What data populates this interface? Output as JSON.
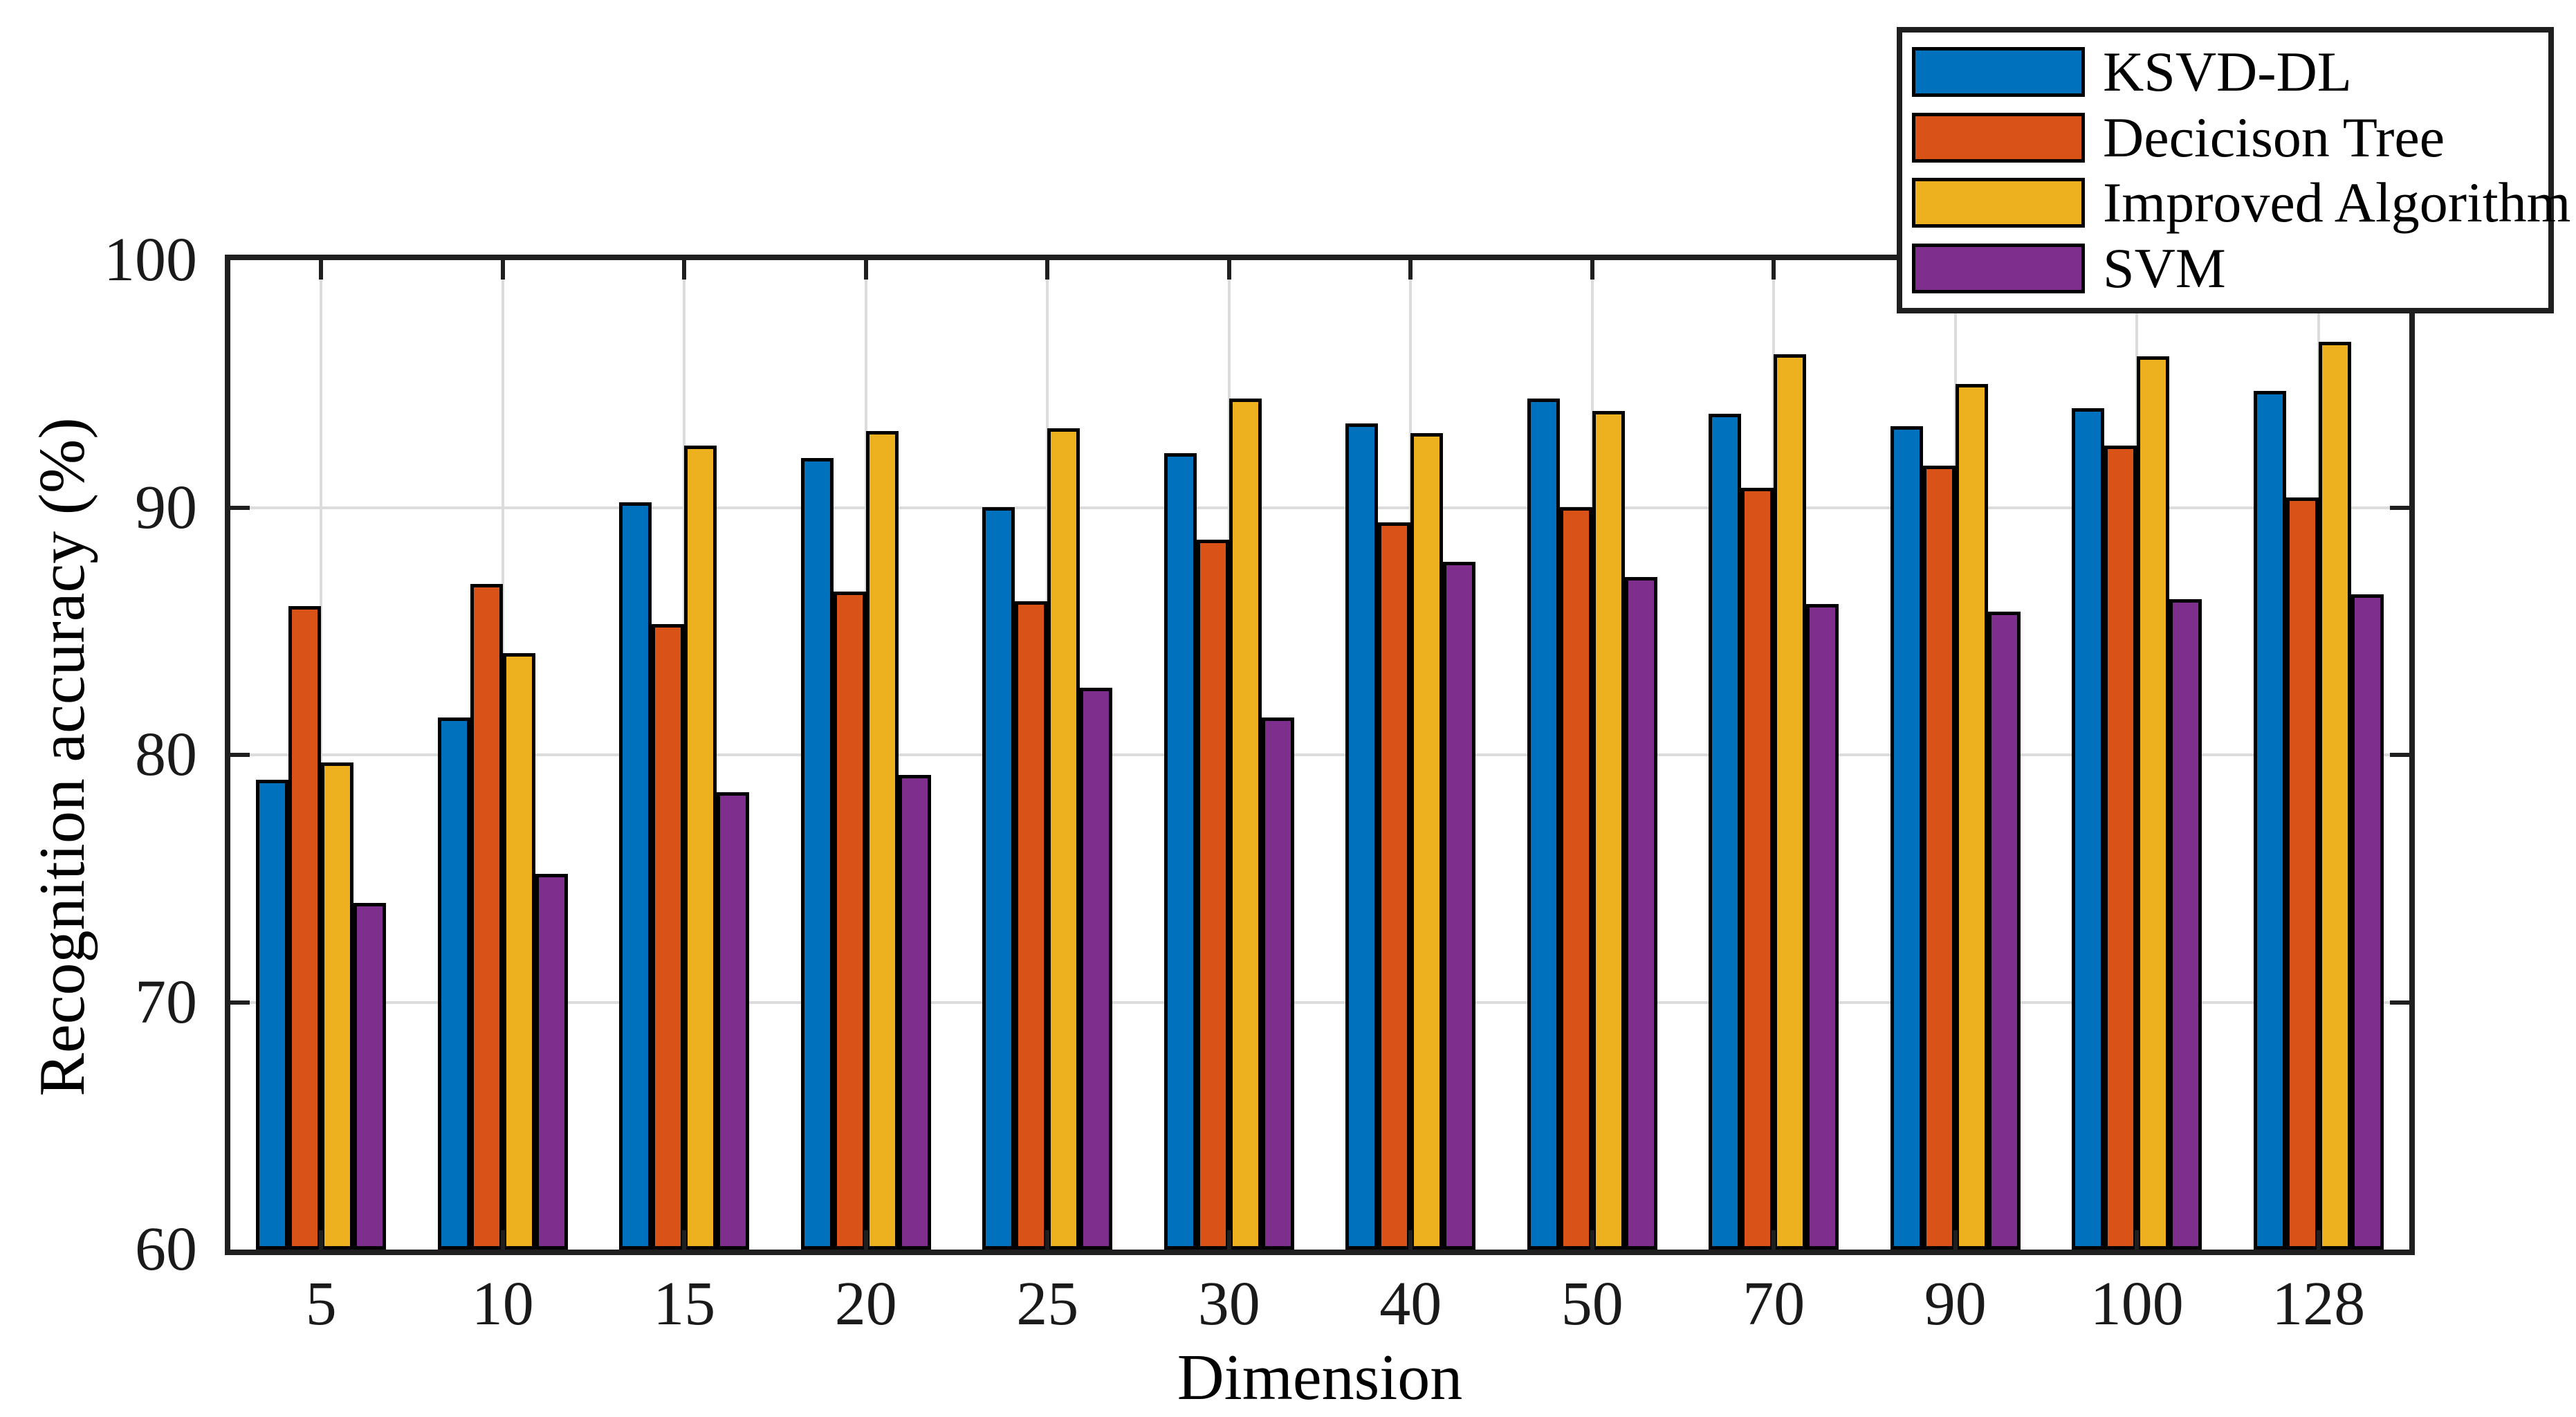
{
  "chart_data": {
    "type": "bar",
    "title": "",
    "xlabel": "Dimension",
    "ylabel": "Recognition accuracy (%)",
    "ylim": [
      60,
      100
    ],
    "yticks": [
      60,
      70,
      80,
      90,
      100
    ],
    "grid": true,
    "legend_position": "top-right",
    "categories": [
      "5",
      "10",
      "15",
      "20",
      "25",
      "30",
      "40",
      "50",
      "70",
      "90",
      "100",
      "128"
    ],
    "series": [
      {
        "name": "KSVD-DL",
        "color": "#0072BD",
        "values": [
          79.0,
          81.5,
          90.2,
          92.0,
          90.0,
          92.2,
          93.4,
          94.4,
          93.8,
          93.3,
          94.0,
          94.7
        ]
      },
      {
        "name": "Decicison Tree",
        "color": "#D95319",
        "values": [
          86.0,
          86.9,
          85.3,
          86.6,
          86.2,
          88.7,
          89.4,
          90.0,
          90.8,
          91.7,
          92.5,
          90.4
        ]
      },
      {
        "name": "Improved Algorithm",
        "color": "#EDB120",
        "values": [
          79.7,
          84.1,
          92.5,
          93.1,
          93.2,
          94.4,
          93.0,
          93.9,
          96.2,
          95.0,
          96.1,
          96.7
        ]
      },
      {
        "name": "SVM",
        "color": "#7E2F8E",
        "values": [
          74.0,
          75.2,
          78.5,
          79.2,
          82.7,
          81.5,
          87.8,
          87.2,
          86.1,
          85.8,
          86.3,
          86.5
        ]
      }
    ]
  },
  "colors": {
    "background": "#FFFFFF",
    "axis_border": "#1F1F1F",
    "gridline": "#DCDCDC",
    "bar_outline": "#000000",
    "text": "#000000"
  }
}
